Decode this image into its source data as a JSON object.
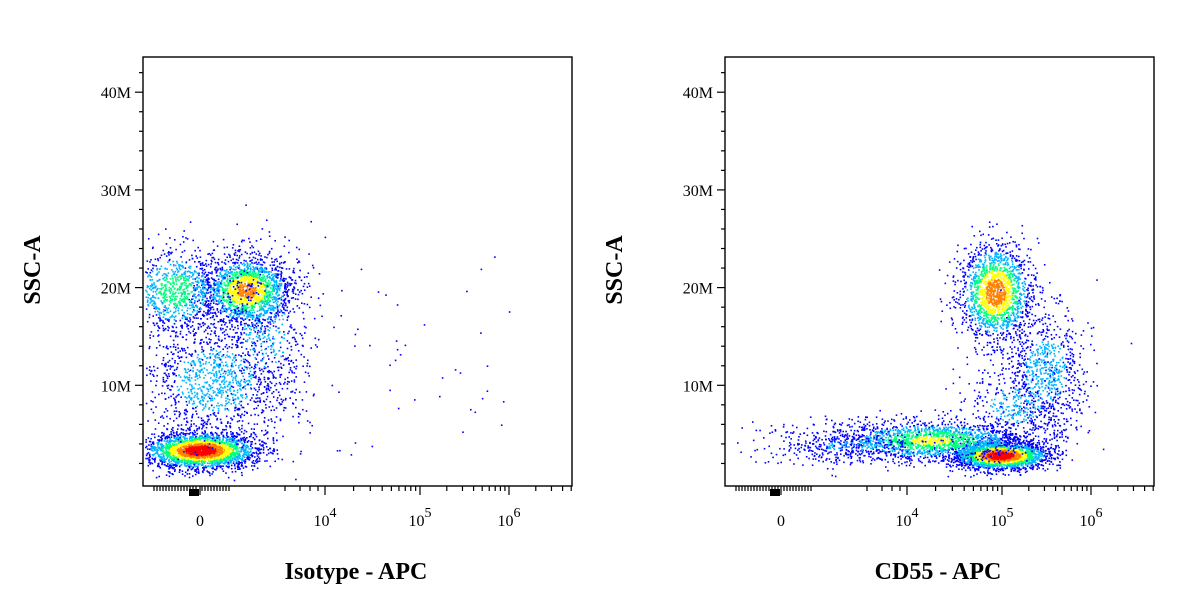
{
  "chart_data": [
    {
      "type": "scatter",
      "title": "",
      "xlabel": "Isotype - APC",
      "ylabel": "SSC-A",
      "x_scale": "biexponential",
      "ylim": [
        "0",
        "44M"
      ],
      "y_ticks": [
        "10M",
        "20M",
        "30M",
        "40M"
      ],
      "x_ticks": [
        {
          "base": "0",
          "exp": ""
        },
        {
          "base": "10",
          "exp": "4"
        },
        {
          "base": "10",
          "exp": "5"
        },
        {
          "base": "10",
          "exp": "6"
        }
      ],
      "populations": [
        {
          "name_visible": false,
          "x_center": "~0",
          "y_center": "3M",
          "density": "highest"
        },
        {
          "name_visible": false,
          "x_center": "~2x10^3",
          "y_center": "19M",
          "density": "high"
        },
        {
          "name_visible": false,
          "x_center": "~0 to 2x10^3",
          "y_center": "5M-20M",
          "density": "medium"
        }
      ],
      "colormap": [
        "#0000ff",
        "#00b4ff",
        "#00ff80",
        "#ffff00",
        "#ff8000",
        "#ff0000"
      ]
    },
    {
      "type": "scatter",
      "title": "",
      "xlabel": "CD55 - APC",
      "ylabel": "SSC-A",
      "x_scale": "biexponential",
      "ylim": [
        "0",
        "44M"
      ],
      "y_ticks": [
        "10M",
        "20M",
        "30M",
        "40M"
      ],
      "x_ticks": [
        {
          "base": "0",
          "exp": ""
        },
        {
          "base": "10",
          "exp": "4"
        },
        {
          "base": "10",
          "exp": "5"
        },
        {
          "base": "10",
          "exp": "6"
        }
      ],
      "populations": [
        {
          "name_visible": false,
          "x_center": "~9x10^4",
          "y_center": "2.5M",
          "density": "highest"
        },
        {
          "name_visible": false,
          "x_center": "~8x10^4",
          "y_center": "19.5M",
          "density": "high"
        },
        {
          "name_visible": false,
          "x_center": "~2x10^4",
          "y_center": "4M",
          "density": "medium"
        },
        {
          "name_visible": false,
          "x_center": "~2x10^5",
          "y_center": "11M",
          "density": "low"
        }
      ],
      "colormap": [
        "#0000ff",
        "#00b4ff",
        "#00ff80",
        "#ffff00",
        "#ff8000",
        "#ff0000"
      ]
    }
  ]
}
